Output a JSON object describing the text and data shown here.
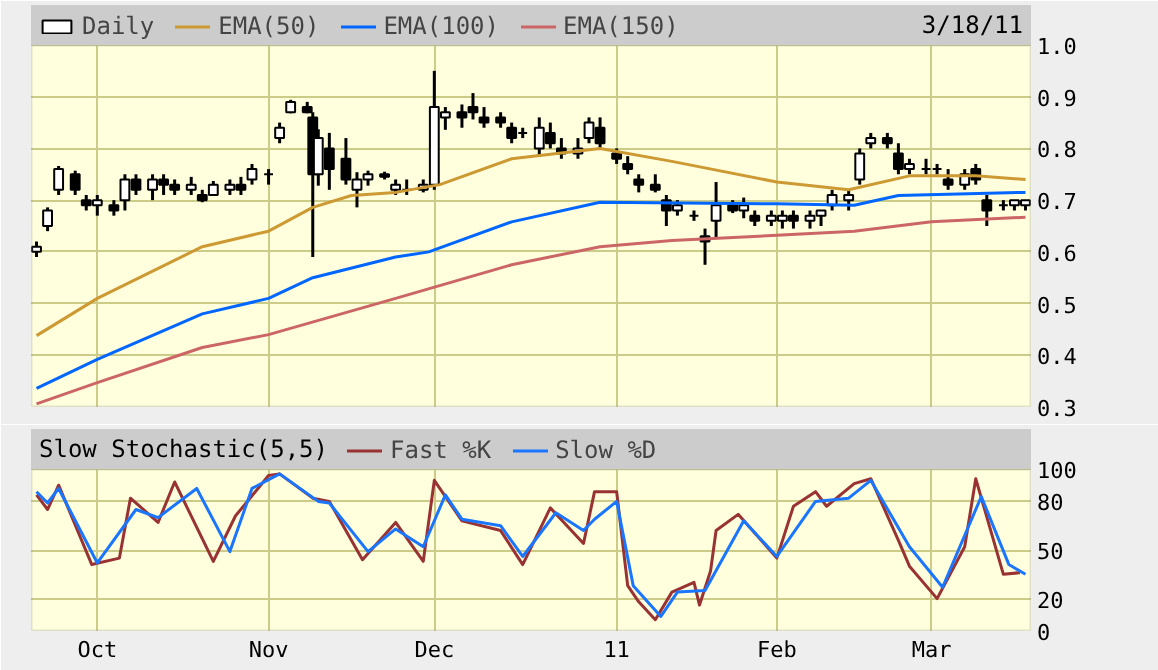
{
  "chart_data": [
    {
      "type": "candlestick",
      "annotations": [
        "3/18/11"
      ],
      "xlim": [
        "2010-09-19",
        "2011-03-19"
      ],
      "xticks": [
        {
          "value": "2010-10-01",
          "label": null
        },
        {
          "value": "2010-11-01",
          "label": null
        },
        {
          "value": "2010-12-01",
          "label": null
        },
        {
          "value": "2011-01-03",
          "label": null
        },
        {
          "value": "2011-02-01",
          "label": null
        },
        {
          "value": "2011-03-01",
          "label": null
        }
      ],
      "ylim": [
        0.3,
        1.0
      ],
      "yticks": [
        0.3,
        0.4,
        0.5,
        0.6,
        0.7,
        0.8,
        0.9,
        {
          "value": 1.0,
          "label": "1.0"
        }
      ],
      "tick_labels": "y",
      "grid": true,
      "legend": "top",
      "series": [
        {
          "name": "Daily",
          "type": "candlestick",
          "color": "#000000",
          "x": [
            "2010-09-20",
            "2010-09-22",
            "2010-09-24",
            "2010-09-27",
            "2010-09-29",
            "2010-10-01",
            "2010-10-04",
            "2010-10-06",
            "2010-10-08",
            "2010-10-11",
            "2010-10-13",
            "2010-10-15",
            "2010-10-18",
            "2010-10-20",
            "2010-10-22",
            "2010-10-25",
            "2010-10-27",
            "2010-10-29",
            "2010-11-01",
            "2010-11-03",
            "2010-11-05",
            "2010-11-08",
            "2010-11-09",
            "2010-11-10",
            "2010-11-12",
            "2010-11-15",
            "2010-11-17",
            "2010-11-19",
            "2010-11-22",
            "2010-11-24",
            "2010-11-26",
            "2010-11-29",
            "2010-12-01",
            "2010-12-03",
            "2010-12-06",
            "2010-12-08",
            "2010-12-10",
            "2010-12-13",
            "2010-12-15",
            "2010-12-17",
            "2010-12-20",
            "2010-12-22",
            "2010-12-24",
            "2010-12-27",
            "2010-12-29",
            "2010-12-31",
            "2011-01-03",
            "2011-01-05",
            "2011-01-07",
            "2011-01-10",
            "2011-01-12",
            "2011-01-14",
            "2011-01-17",
            "2011-01-19",
            "2011-01-21",
            "2011-01-24",
            "2011-01-26",
            "2011-01-28",
            "2011-01-31",
            "2011-02-02",
            "2011-02-04",
            "2011-02-07",
            "2011-02-09",
            "2011-02-11",
            "2011-02-14",
            "2011-02-16",
            "2011-02-18",
            "2011-02-21",
            "2011-02-23",
            "2011-02-25",
            "2011-02-28",
            "2011-03-02",
            "2011-03-04",
            "2011-03-07",
            "2011-03-09",
            "2011-03-11",
            "2011-03-14",
            "2011-03-16",
            "2011-03-18"
          ],
          "ohlc": [
            [
              0.6,
              0.62,
              0.59,
              0.61
            ],
            [
              0.65,
              0.686,
              0.64,
              0.68
            ],
            [
              0.72,
              0.766,
              0.71,
              0.76
            ],
            [
              0.75,
              0.757,
              0.71,
              0.72
            ],
            [
              0.7,
              0.71,
              0.68,
              0.69
            ],
            [
              0.69,
              0.71,
              0.67,
              0.7
            ],
            [
              0.69,
              0.7,
              0.67,
              0.68
            ],
            [
              0.7,
              0.75,
              0.68,
              0.74
            ],
            [
              0.74,
              0.75,
              0.71,
              0.72
            ],
            [
              0.72,
              0.75,
              0.7,
              0.74
            ],
            [
              0.74,
              0.75,
              0.71,
              0.73
            ],
            [
              0.73,
              0.74,
              0.71,
              0.72
            ],
            [
              0.72,
              0.745,
              0.71,
              0.73
            ],
            [
              0.71,
              0.72,
              0.696,
              0.7
            ],
            [
              0.71,
              0.737,
              0.71,
              0.73
            ],
            [
              0.72,
              0.74,
              0.71,
              0.73
            ],
            [
              0.73,
              0.745,
              0.71,
              0.72
            ],
            [
              0.74,
              0.77,
              0.73,
              0.76
            ],
            [
              0.75,
              0.76,
              0.73,
              0.75
            ],
            [
              0.82,
              0.85,
              0.81,
              0.84
            ],
            [
              0.87,
              0.894,
              0.868,
              0.89
            ],
            [
              0.88,
              0.89,
              0.868,
              0.87
            ],
            [
              0.86,
              0.87,
              0.59,
              0.75
            ],
            [
              0.75,
              0.837,
              0.728,
              0.82
            ],
            [
              0.8,
              0.83,
              0.72,
              0.76
            ],
            [
              0.78,
              0.82,
              0.73,
              0.74
            ],
            [
              0.72,
              0.754,
              0.686,
              0.74
            ],
            [
              0.74,
              0.757,
              0.728,
              0.75
            ],
            [
              0.75,
              0.755,
              0.74,
              0.745
            ],
            [
              0.72,
              0.74,
              0.71,
              0.73
            ],
            [
              0.72,
              0.74,
              0.71,
              0.72
            ],
            [
              0.72,
              0.74,
              0.715,
              0.73
            ],
            [
              0.73,
              0.95,
              0.72,
              0.88
            ],
            [
              0.86,
              0.88,
              0.836,
              0.87
            ],
            [
              0.87,
              0.885,
              0.84,
              0.86
            ],
            [
              0.88,
              0.907,
              0.856,
              0.87
            ],
            [
              0.86,
              0.88,
              0.84,
              0.85
            ],
            [
              0.86,
              0.87,
              0.84,
              0.85
            ],
            [
              0.84,
              0.85,
              0.81,
              0.82
            ],
            [
              0.83,
              0.84,
              0.82,
              0.83
            ],
            [
              0.8,
              0.86,
              0.785,
              0.84
            ],
            [
              0.83,
              0.85,
              0.8,
              0.81
            ],
            [
              0.8,
              0.82,
              0.78,
              0.79
            ],
            [
              0.79,
              0.82,
              0.78,
              0.8
            ],
            [
              0.82,
              0.86,
              0.81,
              0.85
            ],
            [
              0.84,
              0.86,
              0.8,
              0.81
            ],
            [
              0.79,
              0.8,
              0.77,
              0.78
            ],
            [
              0.77,
              0.785,
              0.75,
              0.76
            ],
            [
              0.74,
              0.75,
              0.715,
              0.73
            ],
            [
              0.73,
              0.75,
              0.715,
              0.72
            ],
            [
              0.7,
              0.71,
              0.65,
              0.68
            ],
            [
              0.68,
              0.7,
              0.67,
              0.69
            ],
            [
              0.67,
              0.68,
              0.66,
              0.67
            ],
            [
              0.63,
              0.645,
              0.575,
              0.62
            ],
            [
              0.66,
              0.735,
              0.626,
              0.69
            ],
            [
              0.69,
              0.7,
              0.675,
              0.68
            ],
            [
              0.68,
              0.705,
              0.665,
              0.69
            ],
            [
              0.67,
              0.68,
              0.65,
              0.66
            ],
            [
              0.66,
              0.68,
              0.65,
              0.67
            ],
            [
              0.66,
              0.68,
              0.645,
              0.67
            ],
            [
              0.67,
              0.68,
              0.645,
              0.66
            ],
            [
              0.66,
              0.68,
              0.645,
              0.67
            ],
            [
              0.67,
              0.68,
              0.65,
              0.68
            ],
            [
              0.69,
              0.72,
              0.68,
              0.71
            ],
            [
              0.7,
              0.72,
              0.68,
              0.71
            ],
            [
              0.74,
              0.8,
              0.73,
              0.79
            ],
            [
              0.81,
              0.83,
              0.8,
              0.82
            ],
            [
              0.82,
              0.83,
              0.8,
              0.81
            ],
            [
              0.79,
              0.81,
              0.75,
              0.76
            ],
            [
              0.76,
              0.78,
              0.75,
              0.77
            ],
            [
              0.76,
              0.78,
              0.75,
              0.76
            ],
            [
              0.76,
              0.77,
              0.75,
              0.76
            ],
            [
              0.74,
              0.76,
              0.72,
              0.73
            ],
            [
              0.73,
              0.76,
              0.72,
              0.75
            ],
            [
              0.76,
              0.77,
              0.73,
              0.74
            ],
            [
              0.7,
              0.71,
              0.65,
              0.68
            ],
            [
              0.69,
              0.7,
              0.68,
              0.69
            ],
            [
              0.69,
              0.7,
              0.68,
              0.7
            ],
            [
              0.69,
              0.7,
              0.68,
              0.7
            ]
          ]
        },
        {
          "name": "EMA(50)",
          "type": "line",
          "color": "#cc9933",
          "x": [
            "2010-09-20",
            "2010-10-01",
            "2010-10-20",
            "2010-11-01",
            "2010-11-09",
            "2010-11-16",
            "2010-11-24",
            "2010-12-02",
            "2010-12-15",
            "2010-12-31",
            "2011-01-13",
            "2011-02-01",
            "2011-02-14",
            "2011-02-25",
            "2011-03-09",
            "2011-03-18"
          ],
          "values": [
            0.438,
            0.51,
            0.61,
            0.64,
            0.686,
            0.709,
            0.715,
            0.73,
            0.78,
            0.8,
            0.775,
            0.735,
            0.72,
            0.747,
            0.747,
            0.74
          ]
        },
        {
          "name": "EMA(100)",
          "type": "line",
          "color": "#0066ff",
          "x": [
            "2010-09-20",
            "2010-10-01",
            "2010-10-20",
            "2010-11-01",
            "2010-11-09",
            "2010-11-24",
            "2010-11-30",
            "2010-12-15",
            "2010-12-31",
            "2011-02-01",
            "2011-02-15",
            "2011-02-23",
            "2011-03-18"
          ],
          "values": [
            0.336,
            0.392,
            0.48,
            0.51,
            0.55,
            0.59,
            0.6,
            0.658,
            0.696,
            0.693,
            0.69,
            0.709,
            0.715
          ]
        },
        {
          "name": "EMA(150)",
          "type": "line",
          "color": "#cc6666",
          "x": [
            "2010-09-20",
            "2010-10-01",
            "2010-10-20",
            "2010-11-01",
            "2010-11-24",
            "2010-12-15",
            "2010-12-31",
            "2011-01-13",
            "2011-02-01",
            "2011-02-15",
            "2011-03-01",
            "2011-03-18"
          ],
          "values": [
            0.306,
            0.347,
            0.415,
            0.44,
            0.51,
            0.575,
            0.61,
            0.622,
            0.632,
            0.64,
            0.658,
            0.667
          ]
        }
      ]
    },
    {
      "type": "line",
      "title": "Slow Stochastic(5,5)",
      "xlim": [
        "2010-09-19",
        "2011-03-19"
      ],
      "xticks": [
        {
          "value": "2010-10-01",
          "label": "Oct"
        },
        {
          "value": "2010-11-01",
          "label": "Nov"
        },
        {
          "value": "2010-12-01",
          "label": "Dec"
        },
        {
          "value": "2011-01-03",
          "label": "11"
        },
        {
          "value": "2011-02-01",
          "label": "Feb"
        },
        {
          "value": "2011-03-01",
          "label": "Mar"
        }
      ],
      "ylim": [
        0,
        100
      ],
      "yticks": [
        0,
        20,
        50,
        80,
        100
      ],
      "grid": true,
      "legend": "top",
      "series": [
        {
          "name": "Fast %K",
          "color": "#993333",
          "x": [
            "2010-09-20",
            "2010-09-22",
            "2010-09-24",
            "2010-09-30",
            "2010-10-05",
            "2010-10-07",
            "2010-10-12",
            "2010-10-15",
            "2010-10-22",
            "2010-10-26",
            "2010-11-01",
            "2010-11-03",
            "2010-11-09",
            "2010-11-12",
            "2010-11-18",
            "2010-11-24",
            "2010-11-29",
            "2010-12-01",
            "2010-12-06",
            "2010-12-13",
            "2010-12-17",
            "2010-12-22",
            "2010-12-28",
            "2010-12-30",
            "2011-01-03",
            "2011-01-05",
            "2011-01-07",
            "2011-01-10",
            "2011-01-13",
            "2011-01-17",
            "2011-01-18",
            "2011-01-20",
            "2011-01-21",
            "2011-01-25",
            "2011-02-01",
            "2011-02-04",
            "2011-02-08",
            "2011-02-10",
            "2011-02-15",
            "2011-02-18",
            "2011-02-23",
            "2011-02-25",
            "2011-03-02",
            "2011-03-07",
            "2011-03-09",
            "2011-03-14",
            "2011-03-17"
          ],
          "values": [
            84,
            75,
            90,
            41,
            45,
            82,
            67,
            92,
            43,
            71,
            96,
            97,
            82,
            80,
            44,
            67,
            43,
            93,
            68,
            62,
            41,
            76,
            54,
            86,
            86,
            28,
            18,
            7,
            24,
            30,
            16,
            37,
            62,
            72,
            45,
            77,
            86,
            77,
            91,
            94,
            56,
            40,
            20,
            52,
            94,
            35,
            36
          ]
        },
        {
          "name": "Slow %D",
          "color": "#1a75ff",
          "x": [
            "2010-09-20",
            "2010-09-22",
            "2010-09-24",
            "2010-10-01",
            "2010-10-08",
            "2010-10-12",
            "2010-10-19",
            "2010-10-25",
            "2010-10-29",
            "2010-11-03",
            "2010-11-10",
            "2010-11-12",
            "2010-11-19",
            "2010-11-24",
            "2010-11-29",
            "2010-12-03",
            "2010-12-06",
            "2010-12-13",
            "2010-12-17",
            "2010-12-23",
            "2010-12-28",
            "2010-12-30",
            "2011-01-03",
            "2011-01-06",
            "2011-01-11",
            "2011-01-14",
            "2011-01-19",
            "2011-01-26",
            "2011-02-01",
            "2011-02-08",
            "2011-02-14",
            "2011-02-18",
            "2011-02-25",
            "2011-03-03",
            "2011-03-10",
            "2011-03-15",
            "2011-03-18"
          ],
          "values": [
            86,
            79,
            88,
            42,
            75,
            70,
            88,
            49,
            88,
            97,
            80,
            79,
            49,
            63,
            52,
            84,
            69,
            65,
            46,
            73,
            62,
            69,
            80,
            28,
            9,
            24,
            25,
            68,
            46,
            80,
            82,
            93,
            52,
            27,
            83,
            41,
            35
          ]
        }
      ]
    }
  ]
}
